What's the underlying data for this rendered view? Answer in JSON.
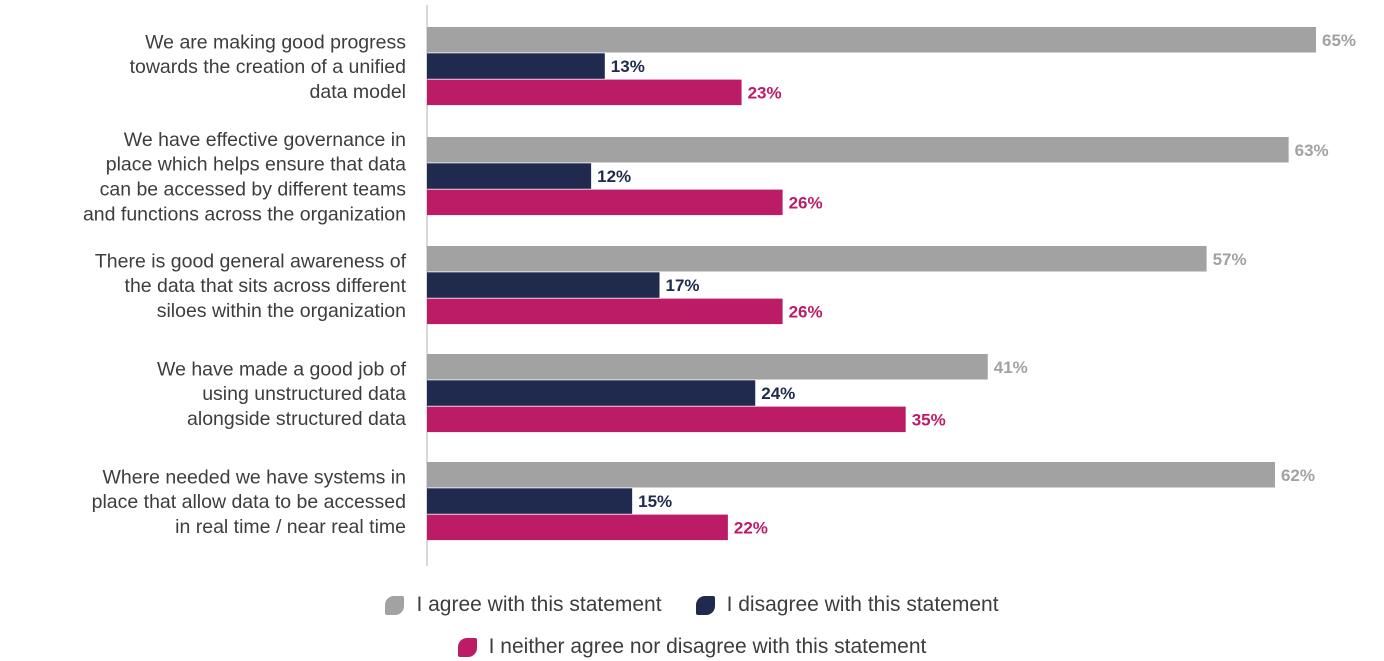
{
  "chart_data": {
    "type": "bar",
    "orientation": "horizontal",
    "categories": [
      [
        "We are making good progress",
        "towards the creation of a unified",
        "data model"
      ],
      [
        "We have effective governance in",
        "place which helps ensure that data",
        "can be accessed by different teams",
        "and functions across the organization"
      ],
      [
        "There is good general awareness of",
        "the data that sits across different",
        "siloes within the organization"
      ],
      [
        "We have made a good job of",
        "using unstructured data",
        "alongside structured data"
      ],
      [
        "Where needed we have systems in",
        "place that allow data to be accessed",
        "in real time / near real time"
      ]
    ],
    "series": [
      {
        "name": "I agree with this statement",
        "color": "#a2a2a2",
        "values": [
          65,
          63,
          57,
          41,
          62
        ],
        "labels": [
          "65%",
          "63%",
          "57%",
          "41%",
          "62%"
        ]
      },
      {
        "name": "I disagree with this statement",
        "color": "#1f2a4e",
        "values": [
          13,
          12,
          17,
          24,
          15
        ],
        "labels": [
          "13%",
          "12%",
          "17%",
          "24%",
          "15%"
        ]
      },
      {
        "name": "I neither agree nor disagree with this statement",
        "color": "#bc1b66",
        "values": [
          23,
          26,
          26,
          35,
          22
        ],
        "labels": [
          "23%",
          "26%",
          "26%",
          "35%",
          "22%"
        ]
      }
    ],
    "xlim": [
      0,
      65
    ],
    "grid": false,
    "legend_position": "bottom"
  }
}
